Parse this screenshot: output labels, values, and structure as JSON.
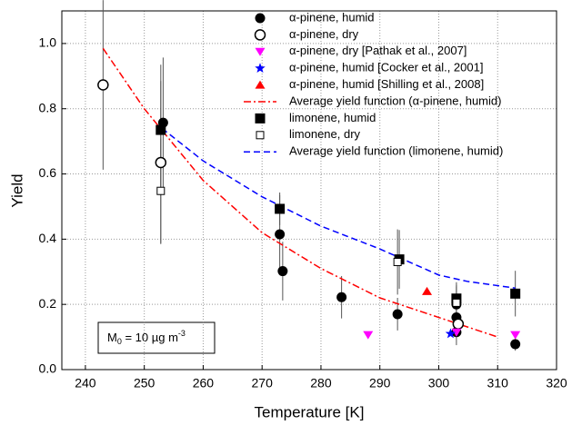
{
  "chart_data": {
    "type": "scatter",
    "x_label": "Temperature [K]",
    "y_label": "Yield",
    "xlim": [
      236,
      320
    ],
    "ylim": [
      0,
      1.1
    ],
    "xticks": [
      240,
      250,
      260,
      270,
      280,
      290,
      300,
      310,
      320
    ],
    "yticks": [
      {
        "value": 0,
        "label": "0.0"
      },
      0.2,
      0.4,
      0.6,
      0.8,
      {
        "value": 1,
        "label": "1.0"
      }
    ],
    "grid": true,
    "legend": "top-right",
    "annotation": {
      "main": "M",
      "sub": "0",
      "rest": " = 10 µg m",
      "sup": "-3"
    },
    "series": [
      {
        "name": "α-pinene, humid",
        "marker": "circle",
        "color": "#000000",
        "x": [
          253.2,
          273,
          273.5,
          283.5,
          293,
          303,
          303,
          303,
          313
        ],
        "values": [
          0.757,
          0.415,
          0.302,
          0.222,
          0.17,
          0.2,
          0.16,
          0.115,
          0.078
        ],
        "errors": [
          0.2,
          0.12,
          0.09,
          0.065,
          0.05,
          0.06,
          0.05,
          0.04,
          0.02
        ]
      },
      {
        "name": "α-pinene, dry",
        "marker": "circle-open",
        "color": "#000000",
        "x": [
          243,
          252.8,
          303.3
        ],
        "values": [
          0.873,
          0.635,
          0.14
        ],
        "errors": [
          0.26,
          0.25,
          0.03
        ]
      },
      {
        "name": "α-pinene, dry [Pathak et al., 2007]",
        "marker": "triangle-down",
        "color": "#ff00ff",
        "x": [
          288,
          303,
          313
        ],
        "values": [
          0.107,
          0.115,
          0.107
        ]
      },
      {
        "name": "α-pinene, humid [Cocker et al., 2001]",
        "marker": "star",
        "color": "#0000ff",
        "x": [
          302
        ],
        "values": [
          0.11
        ]
      },
      {
        "name": "α-pinene, humid [Shilling et al., 2008]",
        "marker": "triangle-up",
        "color": "#ff0000",
        "x": [
          298
        ],
        "values": [
          0.24
        ]
      },
      {
        "name": "Average yield function (α-pinene, humid)",
        "marker": "line",
        "style": "dash-dot",
        "color": "#ff0000",
        "x": [
          243,
          250,
          260,
          270,
          280,
          290,
          300,
          310
        ],
        "values": [
          0.985,
          0.8,
          0.58,
          0.42,
          0.31,
          0.22,
          0.16,
          0.1
        ]
      },
      {
        "name": "limonene, humid",
        "marker": "square",
        "color": "#000000",
        "x": [
          252.8,
          273,
          293.3,
          303,
          313
        ],
        "values": [
          0.735,
          0.493,
          0.338,
          0.218,
          0.233
        ],
        "errors": [
          0.2,
          0.05,
          0.09,
          0.05,
          0.07
        ]
      },
      {
        "name": "limonene, dry",
        "marker": "square-open",
        "color": "#000000",
        "x": [
          252.8,
          293,
          303
        ],
        "values": [
          0.548,
          0.33,
          0.205
        ],
        "errors": [
          0.16,
          0.1,
          0.05
        ]
      },
      {
        "name": "Average yield function (limonene, humid)",
        "marker": "line",
        "style": "dash",
        "color": "#0000ff",
        "x": [
          253,
          260,
          270,
          280,
          290,
          300,
          305,
          313
        ],
        "values": [
          0.74,
          0.64,
          0.53,
          0.44,
          0.37,
          0.29,
          0.27,
          0.25
        ]
      }
    ]
  }
}
